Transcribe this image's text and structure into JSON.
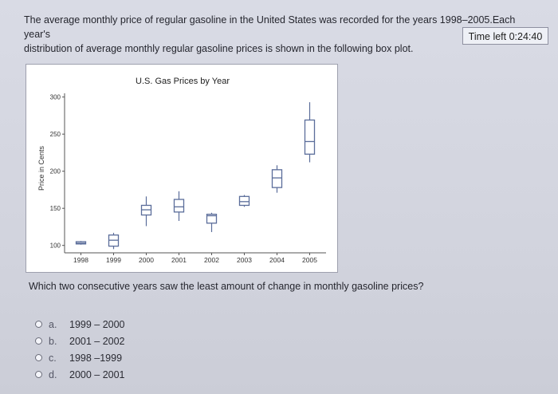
{
  "question": {
    "text_line1": "The average monthly price of regular gasoline in the United States was recorded for the years 1998–2005.Each year's",
    "text_line2": "distribution of average monthly regular gasoline prices is shown in the following box plot.",
    "prompt": "Which two consecutive years saw the least amount of change in monthly gasoline prices?"
  },
  "timer": {
    "label": "Time left 0:24:40"
  },
  "options": [
    {
      "letter": "a.",
      "text": "1999 – 2000"
    },
    {
      "letter": "b.",
      "text": "2001 – 2002"
    },
    {
      "letter": "c.",
      "text": "1998 –1999"
    },
    {
      "letter": "d.",
      "text": "2000 – 2001"
    }
  ],
  "chart_data": {
    "type": "box",
    "title": "U.S. Gas Prices by Year",
    "ylabel": "Price in Cents",
    "xlabel": "",
    "categories": [
      "1998",
      "1999",
      "2000",
      "2001",
      "2002",
      "2003",
      "2004",
      "2005"
    ],
    "yticks": [
      100,
      150,
      200,
      250,
      300
    ],
    "ylim": [
      90,
      305
    ],
    "box_color": "#5b6d9a",
    "boxes": [
      {
        "year": "1998",
        "min": 101,
        "q1": 102,
        "median": 103,
        "q3": 105,
        "max": 106
      },
      {
        "year": "1999",
        "min": 95,
        "q1": 99,
        "median": 107,
        "q3": 114,
        "max": 117
      },
      {
        "year": "2000",
        "min": 126,
        "q1": 141,
        "median": 148,
        "q3": 154,
        "max": 166
      },
      {
        "year": "2001",
        "min": 133,
        "q1": 145,
        "median": 152,
        "q3": 162,
        "max": 173
      },
      {
        "year": "2002",
        "min": 118,
        "q1": 130,
        "median": 140,
        "q3": 142,
        "max": 144
      },
      {
        "year": "2003",
        "min": 152,
        "q1": 154,
        "median": 159,
        "q3": 166,
        "max": 168
      },
      {
        "year": "2004",
        "min": 171,
        "q1": 178,
        "median": 191,
        "q3": 202,
        "max": 208
      },
      {
        "year": "2005",
        "min": 212,
        "q1": 223,
        "median": 240,
        "q3": 269,
        "max": 293
      }
    ]
  }
}
